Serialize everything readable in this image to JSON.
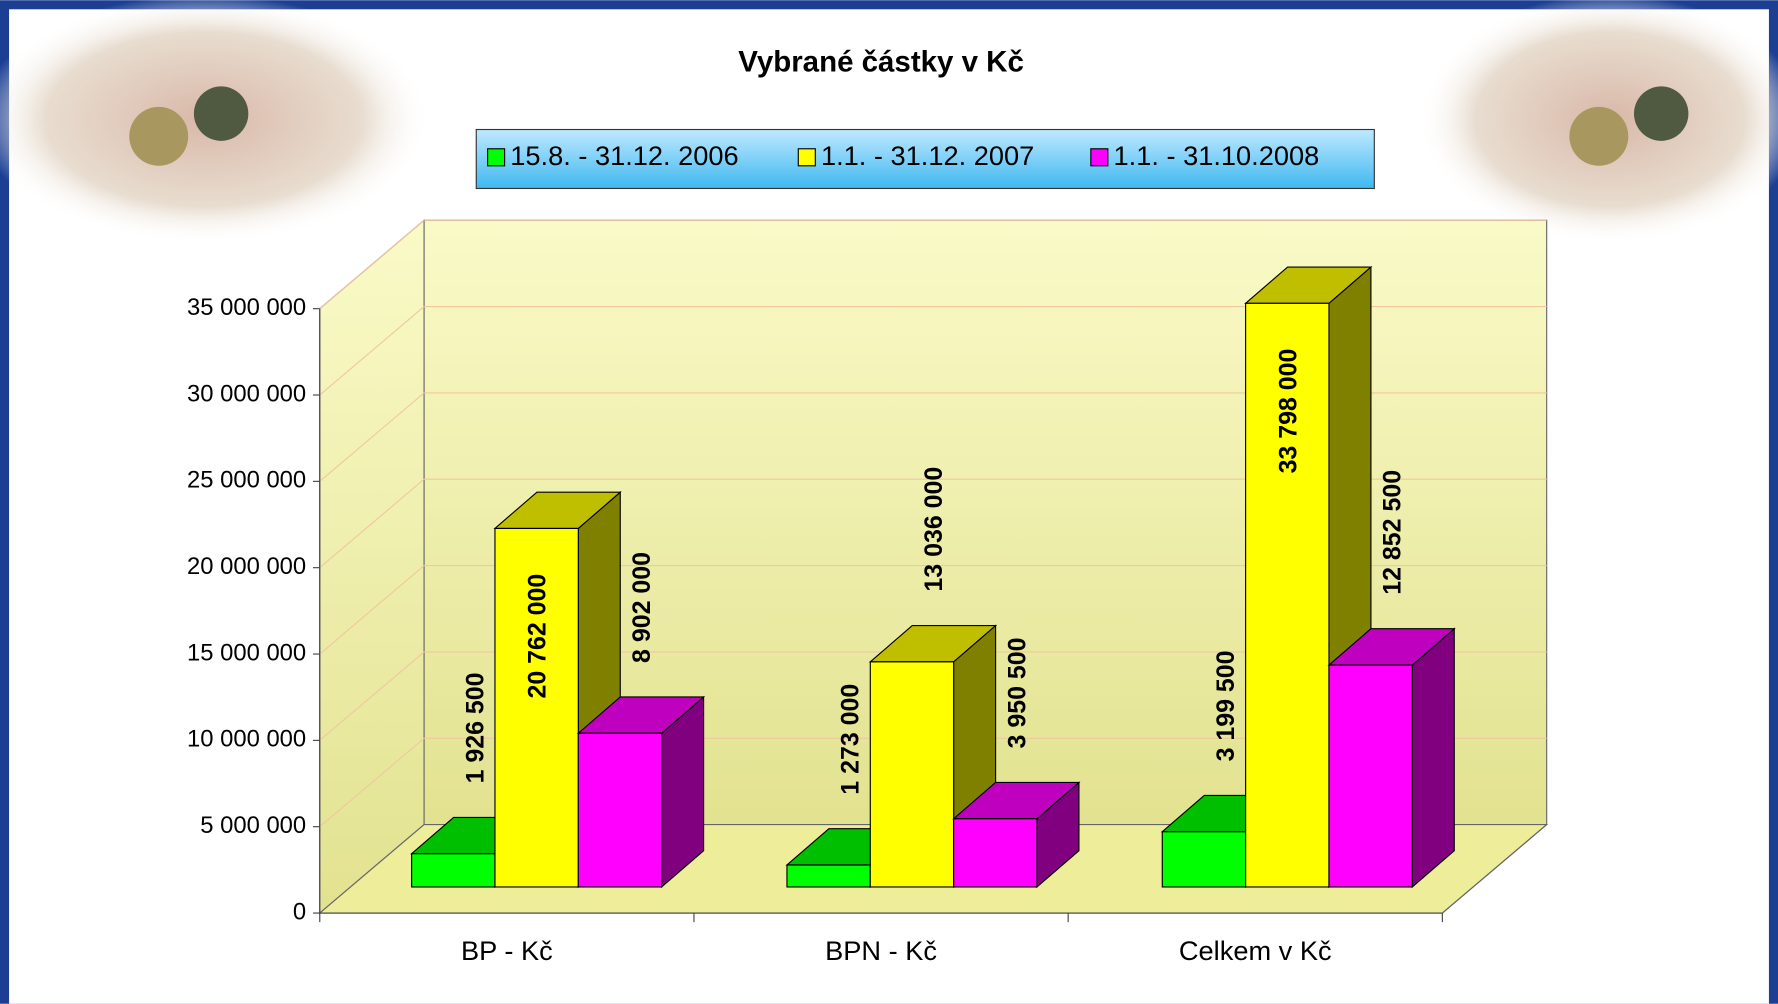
{
  "chart_data": {
    "type": "bar3d",
    "title": "Vybrané částky v Kč",
    "categories": [
      "BP - Kč",
      "BPN - Kč",
      "Celkem v Kč"
    ],
    "series": [
      {
        "name": "15.8. - 31.12. 2006",
        "color": "#00ff00",
        "values": [
          1926500,
          1273000,
          3199500
        ],
        "value_labels": [
          "1 926 500",
          "1 273 000",
          "3 199 500"
        ]
      },
      {
        "name": "1.1. - 31.12. 2007",
        "color": "#ffff00",
        "values": [
          20762000,
          13036000,
          33798000
        ],
        "value_labels": [
          "20 762 000",
          "13 036 000",
          "33 798 000"
        ]
      },
      {
        "name": "1.1. - 31.10.2008",
        "color": "#ff00ff",
        "values": [
          8902000,
          3950500,
          12852500
        ],
        "value_labels": [
          "8 902 000",
          "3 950 500",
          "12 852 500"
        ]
      }
    ],
    "ylim": [
      0,
      35000000
    ],
    "yticks": [
      {
        "value": 0,
        "label": "0"
      },
      {
        "value": 5000000,
        "label": "5 000 000"
      },
      {
        "value": 10000000,
        "label": "10 000 000"
      },
      {
        "value": 15000000,
        "label": "15 000 000"
      },
      {
        "value": 20000000,
        "label": "20 000 000"
      },
      {
        "value": 25000000,
        "label": "25 000 000"
      },
      {
        "value": 30000000,
        "label": "30 000 000"
      },
      {
        "value": 35000000,
        "label": "35 000 000"
      }
    ],
    "grid": true,
    "legend": "top"
  }
}
